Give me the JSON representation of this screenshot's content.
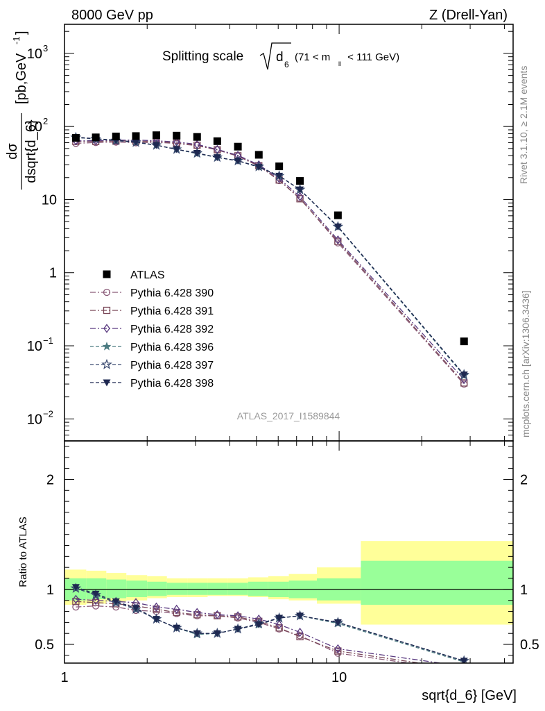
{
  "header": {
    "left": "8000 GeV pp",
    "right": "Z (Drell-Yan)",
    "title_main": "Splitting scale",
    "title_sqrt": "d",
    "title_sqrt_sub": "6",
    "title_range_pre": "(71 < m",
    "title_range_sub": "ll",
    "title_range_post": " < 111 GeV)"
  },
  "side_labels": {
    "rivet": "Rivet 3.1.10, ≥ 2.1M events",
    "mcplots": "mcplots.cern.ch [arXiv:1306.3436]"
  },
  "watermark": "ATLAS_2017_I1589844",
  "ylabel_main_num": "dσ",
  "ylabel_main_den": "dsqrt{d_6}",
  "ylabel_main_units": "[pb,GeV",
  "ylabel_main_exp": "-1",
  "ylabel_main_close": "]",
  "ylabel_ratio": "Ratio to ATLAS",
  "xlabel": "sqrt{d_6} [GeV]",
  "colors": {
    "data": "#000000",
    "p390": "#8a5a78",
    "p391": "#7a4858",
    "p392": "#5a3a80",
    "p396": "#4a7a80",
    "p397": "#3a4a70",
    "p398": "#1e2850",
    "band_inner": "#99ff99",
    "band_outer": "#ffff99"
  },
  "chart_data": {
    "type": "line",
    "x_scale": "log",
    "y_scale": "log",
    "xlim": [
      1,
      43
    ],
    "main_ylim": [
      0.005,
      2500
    ],
    "ratio_ylim": [
      0.33,
      2.35
    ],
    "x_ticks": [
      {
        "value": 1,
        "label": "1"
      },
      {
        "value": 10,
        "label": "10"
      }
    ],
    "main_y_ticks": [
      {
        "value": 1000,
        "label": "10",
        "exp": "3"
      },
      {
        "value": 100,
        "label": "10",
        "exp": "2"
      },
      {
        "value": 10,
        "label": "10",
        "exp": ""
      },
      {
        "value": 1,
        "label": "1",
        "exp": ""
      },
      {
        "value": 0.1,
        "label": "10",
        "exp": "−1"
      },
      {
        "value": 0.01,
        "label": "10",
        "exp": "−2"
      }
    ],
    "ratio_y_ticks": [
      {
        "value": 0.5,
        "label": "0.5"
      },
      {
        "value": 1,
        "label": "1"
      },
      {
        "value": 2,
        "label": "2"
      }
    ],
    "data": {
      "name": "ATLAS",
      "x": [
        1.1,
        1.3,
        1.54,
        1.82,
        2.16,
        2.56,
        3.04,
        3.6,
        4.28,
        5.1,
        6.05,
        7.2,
        9.9,
        28.5
      ],
      "y": [
        70,
        71,
        73,
        74,
        76,
        75,
        72,
        63,
        53,
        41,
        28.5,
        18,
        6.1,
        0.115
      ]
    },
    "series": [
      {
        "name": "Pythia 6.428 390",
        "color_key": "p390",
        "marker": "circle-open",
        "dash": "8,3,2,3",
        "ratio": [
          0.84,
          0.85,
          0.84,
          0.81,
          0.8,
          0.78,
          0.76,
          0.76,
          0.74,
          0.7,
          0.64,
          0.58,
          0.42,
          0.26
        ]
      },
      {
        "name": "Pythia 6.428 391",
        "color_key": "p391",
        "marker": "square-open",
        "dash": "8,3,2,3",
        "ratio": [
          0.89,
          0.88,
          0.87,
          0.85,
          0.82,
          0.79,
          0.77,
          0.76,
          0.75,
          0.71,
          0.65,
          0.57,
          0.44,
          0.27
        ]
      },
      {
        "name": "Pythia 6.428 392",
        "color_key": "p392",
        "marker": "diamond-open",
        "dash": "8,3,2,3",
        "ratio": [
          0.91,
          0.9,
          0.89,
          0.88,
          0.84,
          0.82,
          0.79,
          0.77,
          0.76,
          0.73,
          0.68,
          0.61,
          0.46,
          0.3
        ]
      },
      {
        "name": "Pythia 6.428 396",
        "color_key": "p396",
        "marker": "star-filled",
        "dash": "5,3",
        "ratio": [
          1.01,
          0.95,
          0.88,
          0.82,
          0.73,
          0.65,
          0.59,
          0.6,
          0.64,
          0.68,
          0.74,
          0.76,
          0.69,
          0.34
        ]
      },
      {
        "name": "Pythia 6.428 397",
        "color_key": "p397",
        "marker": "star-open",
        "dash": "5,3",
        "ratio": [
          1.01,
          0.95,
          0.88,
          0.82,
          0.73,
          0.65,
          0.6,
          0.6,
          0.64,
          0.69,
          0.74,
          0.76,
          0.7,
          0.35
        ]
      },
      {
        "name": "Pythia 6.428 398",
        "color_key": "p398",
        "marker": "triangle-down-filled",
        "dash": "5,3",
        "ratio": [
          1.02,
          0.96,
          0.89,
          0.83,
          0.73,
          0.65,
          0.6,
          0.6,
          0.64,
          0.68,
          0.74,
          0.76,
          0.7,
          0.35
        ]
      }
    ],
    "band": {
      "edges": [
        1.0,
        1.2,
        1.42,
        1.68,
        2.0,
        2.36,
        2.8,
        3.32,
        3.94,
        4.66,
        5.52,
        6.56,
        8.3,
        12.0,
        43
      ],
      "inner_up": [
        1.1,
        1.1,
        1.09,
        1.08,
        1.07,
        1.06,
        1.06,
        1.06,
        1.06,
        1.07,
        1.07,
        1.08,
        1.1,
        1.26
      ],
      "inner_dn": [
        0.9,
        0.91,
        0.92,
        0.93,
        0.94,
        0.95,
        0.95,
        0.95,
        0.95,
        0.94,
        0.93,
        0.92,
        0.9,
        0.86
      ],
      "outer_up": [
        1.18,
        1.17,
        1.15,
        1.13,
        1.12,
        1.1,
        1.1,
        1.1,
        1.1,
        1.11,
        1.12,
        1.14,
        1.2,
        1.44
      ],
      "outer_dn": [
        0.86,
        0.87,
        0.89,
        0.9,
        0.92,
        0.93,
        0.93,
        0.94,
        0.94,
        0.93,
        0.91,
        0.9,
        0.87,
        0.68
      ]
    }
  }
}
